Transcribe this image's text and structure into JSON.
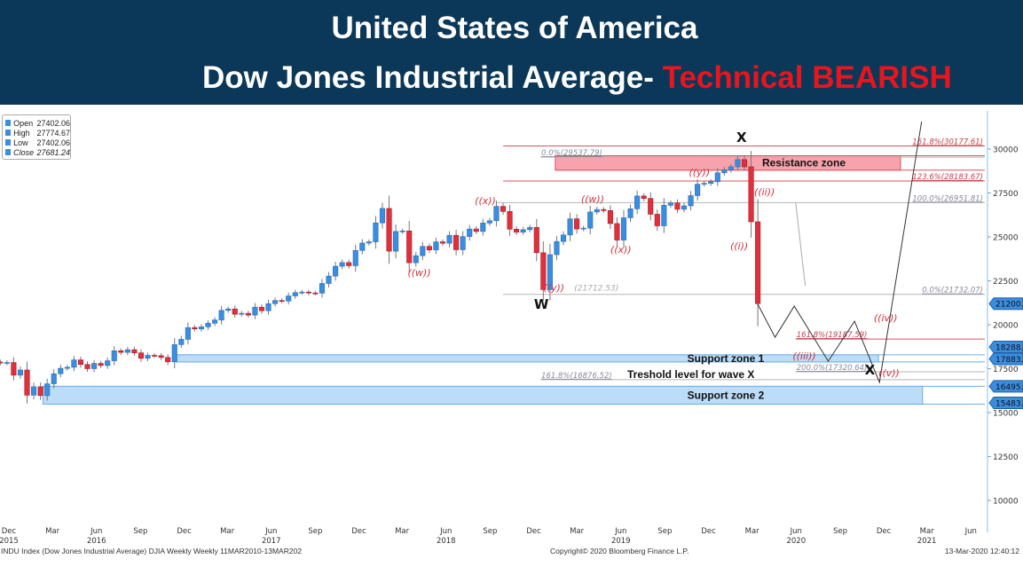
{
  "header": {
    "title": "United States of America",
    "subtitle_main": "Dow Jones Industrial Average- ",
    "subtitle_accent": "Technical BEARISH",
    "accent_color": "#e8141e",
    "background_color": "#0b3858"
  },
  "legend": {
    "rows": [
      {
        "key": "Open",
        "value": "27402.06"
      },
      {
        "key": "High",
        "value": "27774.67"
      },
      {
        "key": "Low",
        "value": "27402.06"
      },
      {
        "key": "Close",
        "value": "27681.24"
      }
    ]
  },
  "footer": {
    "left": "INDU Index (Dow Jones Industrial Average) DJIA Weekly  Weekly 11MAR2010-13MAR202",
    "center": "Copyright© 2020 Bloomberg Finance L.P.",
    "right": "13-Mar-2020 12:40:12"
  },
  "chart_data": {
    "type": "candlestick",
    "title": "",
    "colors": {
      "up": "#3b8de0",
      "down": "#e0303c",
      "fib_red": "#d9535f",
      "fib_gray": "#b5b5b5",
      "support": "#bcdcf7",
      "resistance": "#f7a3ad",
      "tag": "#3b8de0"
    },
    "y_axis": {
      "side": "right",
      "ylim": [
        9000,
        32000
      ],
      "ticks": [
        30000,
        27500,
        25000,
        22500,
        20000,
        17500,
        15000,
        12500,
        10000
      ]
    },
    "x_axis": {
      "months": [
        {
          "label": "Dec",
          "date": "2015-12-01"
        },
        {
          "label": "Mar",
          "date": "2016-03-01"
        },
        {
          "label": "Jun",
          "date": "2016-06-01"
        },
        {
          "label": "Sep",
          "date": "2016-09-01"
        },
        {
          "label": "Dec",
          "date": "2016-12-01"
        },
        {
          "label": "Mar",
          "date": "2017-03-01"
        },
        {
          "label": "Jun",
          "date": "2017-06-01"
        },
        {
          "label": "Sep",
          "date": "2017-09-01"
        },
        {
          "label": "Dec",
          "date": "2017-12-01"
        },
        {
          "label": "Mar",
          "date": "2018-03-01"
        },
        {
          "label": "Jun",
          "date": "2018-06-01"
        },
        {
          "label": "Sep",
          "date": "2018-09-01"
        },
        {
          "label": "Dec",
          "date": "2018-12-01"
        },
        {
          "label": "Mar",
          "date": "2019-03-01"
        },
        {
          "label": "Jun",
          "date": "2019-06-01"
        },
        {
          "label": "Sep",
          "date": "2019-09-01"
        },
        {
          "label": "Dec",
          "date": "2019-12-01"
        },
        {
          "label": "Mar",
          "date": "2020-03-01"
        },
        {
          "label": "Jun",
          "date": "2020-06-01"
        },
        {
          "label": "Sep",
          "date": "2020-09-01"
        },
        {
          "label": "Dec",
          "date": "2020-12-01"
        },
        {
          "label": "Mar",
          "date": "2021-03-01"
        },
        {
          "label": "Jun",
          "date": "2021-06-01"
        }
      ],
      "years": [
        {
          "label": "2015",
          "date": "2015-12-01"
        },
        {
          "label": "2016",
          "date": "2016-06-01"
        },
        {
          "label": "2017",
          "date": "2017-06-01"
        },
        {
          "label": "2018",
          "date": "2018-06-01"
        },
        {
          "label": "2019",
          "date": "2019-06-01"
        },
        {
          "label": "2020",
          "date": "2020-06-01"
        },
        {
          "label": "2021",
          "date": "2021-03-01"
        }
      ]
    },
    "candles": {
      "end_date": "2020-03-13",
      "closes": [
        17820,
        17850,
        17130,
        17425,
        15990,
        16470,
        15970,
        16640,
        17210,
        17520,
        17580,
        18000,
        17740,
        17500,
        17800,
        17680,
        17950,
        18520,
        18430,
        18580,
        18400,
        18090,
        18260,
        18240,
        18140,
        17890,
        18870,
        19170,
        19840,
        19760,
        19880,
        20090,
        20270,
        20820,
        20900,
        20600,
        20650,
        20550,
        21000,
        20800,
        21200,
        21380,
        21350,
        21640,
        21830,
        21860,
        21810,
        21800,
        22350,
        22770,
        23330,
        23540,
        23360,
        24230,
        24650,
        24720,
        25800,
        26620,
        24190,
        25310,
        25340,
        23530,
        23930,
        24460,
        24260,
        24720,
        24640,
        25090,
        24270,
        25020,
        25450,
        25310,
        25790,
        25920,
        26740,
        26450,
        25440,
        25270,
        25410,
        25540,
        24100,
        22000,
        23990,
        24740,
        25110,
        26030,
        25450,
        25500,
        26420,
        26560,
        26500,
        25760,
        24820,
        26090,
        26600,
        27330,
        27190,
        26290,
        25630,
        26800,
        26930,
        26570,
        26770,
        27350,
        28000,
        28050,
        28140,
        28650,
        28820,
        28990,
        29400,
        28990,
        25860,
        21200
      ]
    },
    "fib_levels": [
      {
        "label": "161.8%(30177.61)",
        "value": 30177.61,
        "color": "red",
        "start": "2018-09-28",
        "label_side": "right"
      },
      {
        "label": "0.0%(29537.79)",
        "value": 29537.79,
        "color": "gray",
        "start": "2018-12-15",
        "label_side": "left"
      },
      {
        "label": "123.6%(28183.67)",
        "value": 28183.67,
        "color": "red",
        "start": "2018-09-28",
        "label_side": "right"
      },
      {
        "label": "100.0%(26951.81)",
        "value": 26951.81,
        "color": "gray",
        "start": "2018-09-15",
        "label_side": "right"
      },
      {
        "label": "0.0%(21732.07)",
        "value": 21732.07,
        "color": "gray",
        "start": "2018-09-28",
        "label_side": "right"
      },
      {
        "label": "161.8%(19187.59)",
        "value": 19187.59,
        "color": "red",
        "start": "2020-05-31",
        "label_side": "left"
      },
      {
        "label": "200.0%(17320.64)",
        "value": 17320.64,
        "color": "gray",
        "start": "2020-05-31",
        "label_side": "left"
      },
      {
        "label": "161.8%(16876.52)",
        "value": 16876.52,
        "color": "gray",
        "start": "2018-12-15",
        "label_side": "left"
      }
    ],
    "zones": [
      {
        "label": "Resistance zone",
        "kind": "resistance",
        "high": 29620,
        "low": 28800,
        "start": "2019-01-15",
        "end": "2021-01-05"
      },
      {
        "label": "Support zone 1",
        "kind": "support",
        "high": 18288.4,
        "low": 17883.56,
        "start": "2016-11-15",
        "end": "2020-11-20"
      },
      {
        "label": "Support zone  2",
        "kind": "support",
        "high": 16495.54,
        "low": 15483.45,
        "start": "2016-02-10",
        "end": "2021-02-20"
      }
    ],
    "threshold": {
      "label": "Treshold level for wave X",
      "value": 16876.52
    },
    "price_tags": [
      "21200.62",
      "18288.40",
      "17883.56",
      "16495.54",
      "15483.45"
    ],
    "projection": [
      {
        "date": "2020-03-13",
        "price": 21160
      },
      {
        "date": "2020-04-18",
        "price": 19290
      },
      {
        "date": "2020-05-28",
        "price": 21060
      },
      {
        "date": "2020-08-07",
        "price": 17930
      },
      {
        "date": "2020-10-01",
        "price": 20200
      },
      {
        "date": "2020-11-22",
        "price": 16720
      },
      {
        "date": "2021-02-18",
        "price": 31570
      }
    ],
    "trend_segment": [
      {
        "date": "2020-05-31",
        "price": 26970
      },
      {
        "date": "2020-06-20",
        "price": 22220
      }
    ],
    "wave_labels": [
      {
        "text": "((w))",
        "date": "2018-04-06",
        "price": 22780,
        "style": "red"
      },
      {
        "text": "((x))",
        "date": "2018-08-22",
        "price": 26870,
        "style": "red"
      },
      {
        "text": "((y))",
        "date": "2019-01-12",
        "price": 21920,
        "style": "red"
      },
      {
        "text": "(21712.53)",
        "date": "2019-02-20",
        "price": 21940,
        "style": "gray"
      },
      {
        "text": "W",
        "date": "2018-12-17",
        "price": 20910,
        "style": "black"
      },
      {
        "text": "((w))",
        "date": "2019-04-03",
        "price": 26970,
        "style": "red"
      },
      {
        "text": "((x))",
        "date": "2019-06-01",
        "price": 24090,
        "style": "red"
      },
      {
        "text": "((y))",
        "date": "2019-11-12",
        "price": 28480,
        "style": "red"
      },
      {
        "text": "X",
        "date": "2020-02-08",
        "price": 30400,
        "style": "black"
      },
      {
        "text": "((ii))",
        "date": "2020-03-27",
        "price": 27370,
        "style": "red"
      },
      {
        "text": "((i))",
        "date": "2020-02-03",
        "price": 24300,
        "style": "red"
      },
      {
        "text": "((iii))",
        "date": "2020-06-18",
        "price": 18030,
        "style": "red"
      },
      {
        "text": "((iv))",
        "date": "2020-12-05",
        "price": 20200,
        "style": "red"
      },
      {
        "text": "X",
        "date": "2020-11-02",
        "price": 17170,
        "style": "black"
      },
      {
        "text": "((v))",
        "date": "2020-12-12",
        "price": 17070,
        "style": "red"
      }
    ]
  }
}
